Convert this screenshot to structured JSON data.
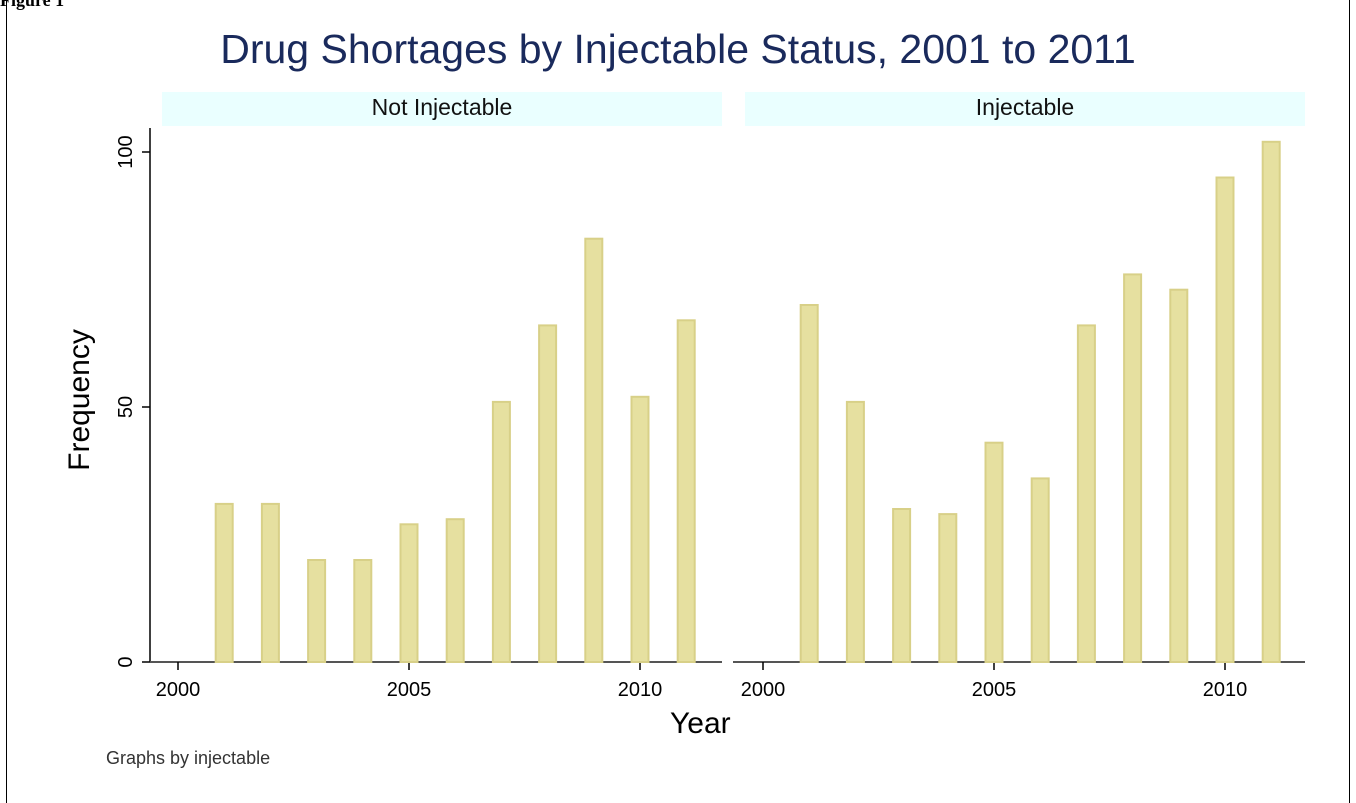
{
  "figure_label": "Figure 1",
  "chart_data": {
    "type": "bar",
    "title": "Drug Shortages by Injectable Status, 2001 to 2011",
    "xlabel": "Year",
    "ylabel": "Frequency",
    "note": "Graphs by injectable",
    "xlim": [
      2000,
      2011
    ],
    "ylim": [
      0,
      100
    ],
    "xticks": [
      2000,
      2005,
      2010
    ],
    "yticks": [
      0,
      50,
      100
    ],
    "bar_color": "#e6e0a0",
    "bar_edge_color": "#d8d088",
    "panels": [
      {
        "name": "Not Injectable",
        "x": [
          2001,
          2002,
          2003,
          2004,
          2005,
          2006,
          2007,
          2008,
          2009,
          2010,
          2011
        ],
        "values": [
          31,
          31,
          20,
          20,
          27,
          28,
          51,
          66,
          83,
          52,
          67
        ]
      },
      {
        "name": "Injectable",
        "x": [
          2001,
          2002,
          2003,
          2004,
          2005,
          2006,
          2007,
          2008,
          2009,
          2010,
          2011
        ],
        "values": [
          70,
          51,
          30,
          29,
          43,
          36,
          66,
          76,
          73,
          95,
          102
        ]
      }
    ]
  }
}
